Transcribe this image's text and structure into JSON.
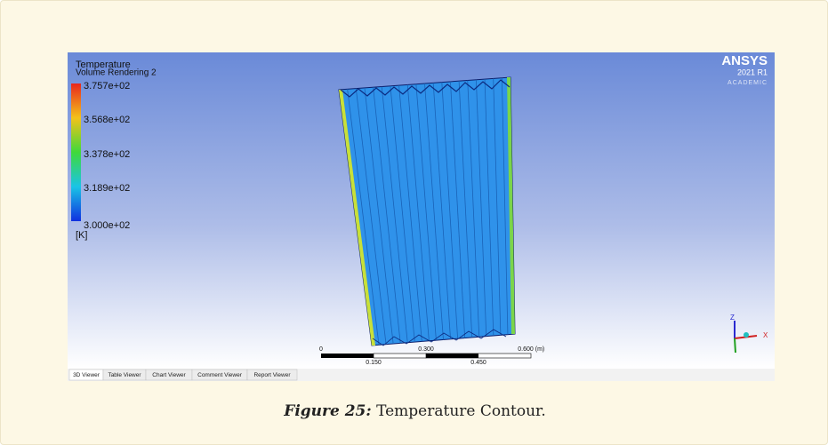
{
  "figure": {
    "legend": {
      "title": "Temperature",
      "subtitle": "Volume Rendering 2",
      "labels": [
        "3.757e+02",
        "3.568e+02",
        "3.378e+02",
        "3.189e+02",
        "3.000e+02"
      ],
      "unit": "[K]"
    },
    "logo": {
      "brand": "ANSYS",
      "version": "2021 R1",
      "edition": "ACADEMIC"
    },
    "scale": {
      "top_labels": [
        "0",
        "0.300",
        "0.600"
      ],
      "unit": "(m)",
      "bottom_labels": [
        "0.150",
        "0.450"
      ]
    },
    "axes": {
      "z": "Z",
      "x": "X"
    },
    "tabs": [
      "3D Viewer",
      "Table Viewer",
      "Chart Viewer",
      "Comment Viewer",
      "Report Viewer"
    ]
  },
  "caption": {
    "label": "Figure 25:",
    "text": "Temperature Contour."
  }
}
